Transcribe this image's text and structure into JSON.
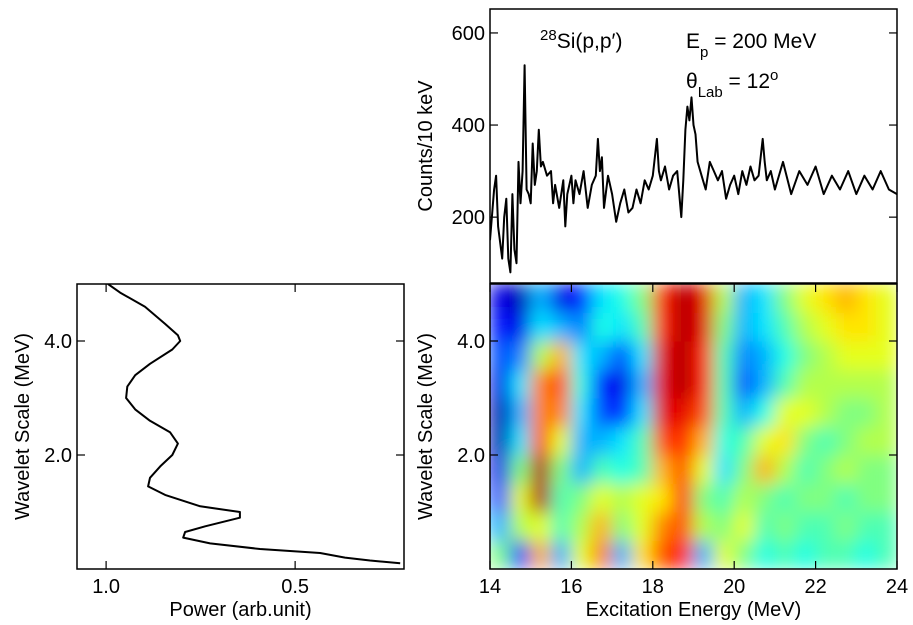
{
  "chart_data": [
    {
      "type": "line",
      "ylabel": "Counts/10 keV",
      "xlim": [
        14,
        24
      ],
      "ylim": [
        57,
        652
      ],
      "yticks": [
        200,
        400,
        600
      ],
      "annotations": [
        [
          {
            "text": "28",
            "shift": "super"
          },
          {
            "text": "Si(p,p′)"
          }
        ],
        [
          {
            "text": "E"
          },
          {
            "text": "p",
            "shift": "sub"
          },
          {
            "text": " = 200 MeV"
          }
        ],
        [
          {
            "text": "θ"
          },
          {
            "text": "Lab",
            "shift": "sub"
          },
          {
            "text": " = 12"
          },
          {
            "text": "o",
            "shift": "super"
          }
        ]
      ],
      "x": [
        14.0,
        14.1,
        14.15,
        14.2,
        14.3,
        14.35,
        14.4,
        14.45,
        14.5,
        14.55,
        14.6,
        14.65,
        14.7,
        14.75,
        14.8,
        14.85,
        14.9,
        14.95,
        15.0,
        15.05,
        15.1,
        15.15,
        15.2,
        15.25,
        15.3,
        15.4,
        15.5,
        15.55,
        15.6,
        15.7,
        15.8,
        15.85,
        15.9,
        16.0,
        16.05,
        16.1,
        16.2,
        16.3,
        16.4,
        16.5,
        16.6,
        16.65,
        16.7,
        16.75,
        16.8,
        16.9,
        17.0,
        17.1,
        17.2,
        17.3,
        17.4,
        17.5,
        17.6,
        17.7,
        17.8,
        17.9,
        18.0,
        18.1,
        18.15,
        18.2,
        18.3,
        18.4,
        18.5,
        18.6,
        18.7,
        18.75,
        18.8,
        18.85,
        18.9,
        18.95,
        19.0,
        19.05,
        19.1,
        19.2,
        19.3,
        19.4,
        19.5,
        19.6,
        19.7,
        19.8,
        19.9,
        20.0,
        20.1,
        20.2,
        20.3,
        20.4,
        20.5,
        20.6,
        20.7,
        20.75,
        20.8,
        20.9,
        21.0,
        21.2,
        21.4,
        21.6,
        21.8,
        22.0,
        22.2,
        22.4,
        22.6,
        22.8,
        23.0,
        23.2,
        23.4,
        23.6,
        23.8,
        24.0
      ],
      "series": [
        {
          "color": "#000000",
          "values": [
            150,
            260,
            290,
            180,
            110,
            200,
            240,
            110,
            80,
            250,
            130,
            100,
            320,
            230,
            300,
            530,
            260,
            250,
            230,
            360,
            270,
            300,
            390,
            310,
            320,
            290,
            300,
            230,
            270,
            220,
            280,
            180,
            250,
            290,
            230,
            280,
            250,
            300,
            220,
            270,
            290,
            370,
            300,
            330,
            220,
            290,
            250,
            190,
            230,
            260,
            210,
            220,
            260,
            230,
            280,
            260,
            290,
            370,
            300,
            280,
            310,
            260,
            290,
            300,
            200,
            280,
            390,
            440,
            410,
            460,
            400,
            380,
            320,
            290,
            260,
            320,
            300,
            280,
            300,
            240,
            270,
            290,
            250,
            300,
            270,
            310,
            280,
            290,
            370,
            320,
            280,
            300,
            260,
            320,
            250,
            300,
            270,
            310,
            250,
            290,
            260,
            300,
            250,
            290,
            260,
            300,
            260,
            250
          ]
        }
      ]
    },
    {
      "type": "heatmap",
      "xlabel": "Excitation Energy (MeV)",
      "ylabel": "Wavelet Scale (MeV)",
      "colormap": "jet",
      "xlim": [
        14,
        24
      ],
      "xticks": [
        14,
        16,
        18,
        20,
        22,
        24
      ],
      "ylim": [
        0,
        5
      ],
      "yticks": [
        {
          "value": 2,
          "label": "2.0"
        },
        {
          "value": 4,
          "label": "4.0"
        }
      ],
      "x": [
        14.25,
        14.75,
        15.25,
        15.75,
        16.25,
        16.75,
        17.25,
        17.75,
        18.25,
        18.75,
        19.25,
        19.75,
        20.25,
        20.75,
        21.25,
        21.75,
        22.25,
        22.75,
        23.25,
        23.75
      ],
      "y": [
        0.25,
        0.75,
        1.25,
        1.75,
        2.25,
        2.75,
        3.25,
        3.75,
        4.25,
        4.75
      ],
      "z": [
        [
          0.5,
          0.2,
          0.7,
          0.3,
          0.6,
          0.75,
          0.3,
          0.65,
          0.8,
          0.85,
          0.3,
          0.6,
          0.5,
          0.4,
          0.45,
          0.4,
          0.45,
          0.45,
          0.4,
          0.45
        ],
        [
          0.3,
          0.55,
          0.6,
          0.45,
          0.55,
          0.7,
          0.5,
          0.6,
          0.75,
          0.8,
          0.55,
          0.5,
          0.6,
          0.45,
          0.5,
          0.45,
          0.45,
          0.5,
          0.45,
          0.45
        ],
        [
          0.2,
          0.6,
          0.95,
          0.45,
          0.5,
          0.6,
          0.55,
          0.6,
          0.65,
          0.85,
          0.5,
          0.45,
          0.55,
          0.5,
          0.45,
          0.5,
          0.5,
          0.45,
          0.5,
          0.5
        ],
        [
          0.1,
          0.5,
          0.95,
          0.5,
          0.3,
          0.45,
          0.4,
          0.45,
          0.7,
          0.8,
          0.6,
          0.35,
          0.5,
          0.7,
          0.55,
          0.45,
          0.5,
          0.55,
          0.5,
          0.5
        ],
        [
          0.05,
          0.35,
          0.8,
          0.6,
          0.3,
          0.3,
          0.35,
          0.45,
          0.8,
          0.85,
          0.7,
          0.4,
          0.45,
          0.6,
          0.65,
          0.5,
          0.45,
          0.5,
          0.55,
          0.55
        ],
        [
          0.05,
          0.3,
          0.75,
          0.75,
          0.35,
          0.2,
          0.15,
          0.35,
          0.9,
          0.9,
          0.8,
          0.45,
          0.3,
          0.4,
          0.6,
          0.6,
          0.55,
          0.5,
          0.5,
          0.55
        ],
        [
          0.1,
          0.35,
          0.75,
          0.8,
          0.4,
          0.15,
          0.1,
          0.3,
          0.9,
          0.95,
          0.85,
          0.45,
          0.2,
          0.3,
          0.45,
          0.55,
          0.55,
          0.55,
          0.55,
          0.55
        ],
        [
          0.2,
          0.25,
          0.55,
          0.7,
          0.35,
          0.3,
          0.2,
          0.35,
          0.9,
          0.95,
          0.85,
          0.45,
          0.25,
          0.3,
          0.4,
          0.5,
          0.55,
          0.6,
          0.6,
          0.6
        ],
        [
          0.15,
          0.1,
          0.35,
          0.3,
          0.25,
          0.4,
          0.35,
          0.45,
          0.85,
          0.95,
          0.9,
          0.5,
          0.3,
          0.35,
          0.45,
          0.55,
          0.6,
          0.65,
          0.65,
          0.6
        ],
        [
          0.1,
          0.05,
          0.3,
          0.1,
          0.15,
          0.35,
          0.4,
          0.5,
          0.85,
          0.95,
          0.9,
          0.55,
          0.3,
          0.35,
          0.5,
          0.6,
          0.65,
          0.7,
          0.65,
          0.6
        ]
      ]
    },
    {
      "type": "line",
      "orientation": "horizontal",
      "xlabel": "Power (arb.unit)",
      "ylabel": "Wavelet Scale (MeV)",
      "xlim": [
        1.077,
        0.212
      ],
      "xticks": [
        {
          "value": 1,
          "label": "1.0"
        },
        {
          "value": 0.5,
          "label": "0.5"
        }
      ],
      "ylim": [
        0,
        5
      ],
      "yticks": [
        {
          "value": 2,
          "label": "2.0"
        },
        {
          "value": 4,
          "label": "4.0"
        }
      ],
      "y": [
        5.0,
        4.85,
        4.6,
        4.3,
        4.1,
        4.0,
        3.85,
        3.6,
        3.4,
        3.2,
        3.0,
        2.8,
        2.6,
        2.4,
        2.2,
        2.0,
        1.8,
        1.6,
        1.45,
        1.3,
        1.1,
        1.0,
        0.9,
        0.75,
        0.65,
        0.55,
        0.45,
        0.35,
        0.28,
        0.2,
        0.15,
        0.1
      ],
      "series": [
        {
          "color": "#000000",
          "values": [
            0.995,
            0.963,
            0.897,
            0.844,
            0.81,
            0.804,
            0.825,
            0.884,
            0.923,
            0.944,
            0.947,
            0.923,
            0.884,
            0.831,
            0.81,
            0.825,
            0.857,
            0.884,
            0.889,
            0.844,
            0.751,
            0.646,
            0.646,
            0.738,
            0.791,
            0.796,
            0.725,
            0.593,
            0.434,
            0.368,
            0.302,
            0.222
          ]
        }
      ]
    }
  ]
}
